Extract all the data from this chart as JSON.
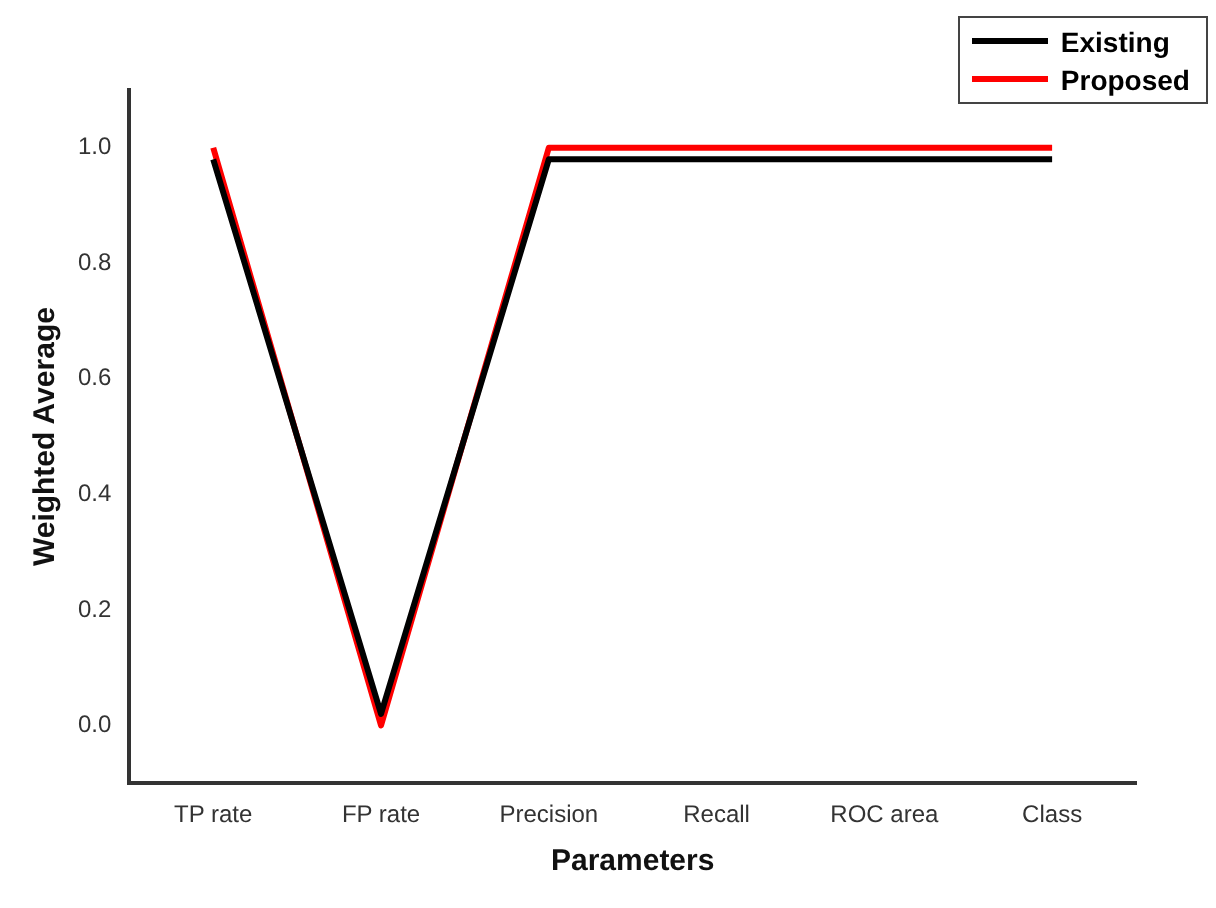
{
  "chart_data": {
    "type": "line",
    "xlabel": "Parameters",
    "ylabel": "Weighted Average",
    "categories": [
      "TP rate",
      "FP rate",
      "Precision",
      "Recall",
      "ROC area",
      "Class"
    ],
    "series": [
      {
        "name": "Existing",
        "color": "#000000",
        "values": [
          0.98,
          0.02,
          0.98,
          0.98,
          0.98,
          0.98
        ]
      },
      {
        "name": "Proposed",
        "color": "#ff0000",
        "values": [
          1.0,
          0.0,
          1.0,
          1.0,
          1.0,
          1.0
        ]
      }
    ],
    "ylim": [
      -0.1,
      1.1
    ],
    "yticks": [
      {
        "value": 0,
        "label": "0.0"
      },
      {
        "value": 0.2,
        "label": "0.2"
      },
      {
        "value": 0.4,
        "label": "0.4"
      },
      {
        "value": 0.6,
        "label": "0.6"
      },
      {
        "value": 0.8,
        "label": "0.8"
      },
      {
        "value": 1,
        "label": "1.0"
      }
    ],
    "grid": false,
    "legend": "top right",
    "marker": "none",
    "line_style": "solid"
  }
}
